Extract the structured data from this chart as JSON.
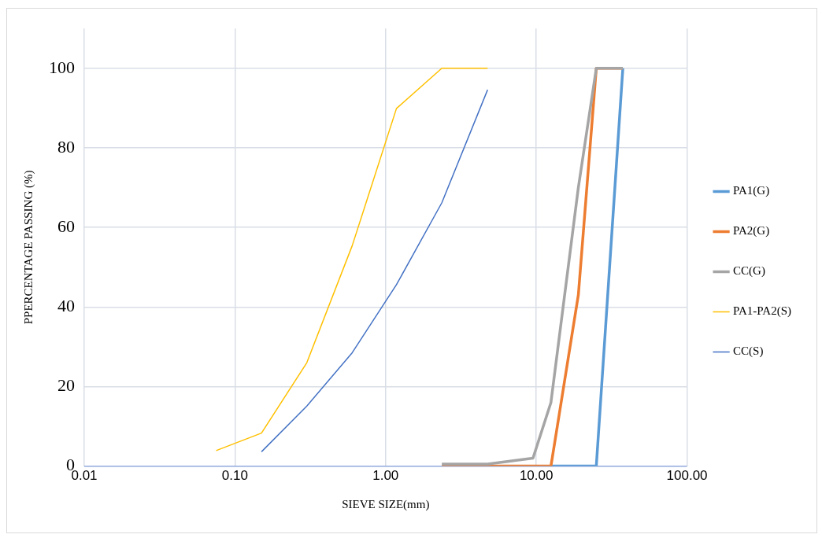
{
  "chart_data": {
    "type": "line",
    "xlabel": "SIEVE SIZE(mm)",
    "ylabel": "PPERCENTAGE PASSING (%)",
    "log": "x",
    "grid": true,
    "legend": "right",
    "marker": "none",
    "line_style": "solid",
    "xlim": [
      0.01,
      100
    ],
    "xticks": [
      {
        "value": 0.01,
        "label": "0.01"
      },
      {
        "value": 0.1,
        "label": "0.10"
      },
      {
        "value": 1,
        "label": "1.00"
      },
      {
        "value": 10,
        "label": "10.00"
      },
      {
        "value": 100,
        "label": "100.00"
      }
    ],
    "ylim": [
      0,
      110
    ],
    "yticks": [
      0,
      20,
      40,
      60,
      80,
      100
    ],
    "series": [
      {
        "name": "PA1(G)",
        "color": "#5b9bd5",
        "x": [
          12.5,
          19,
          25,
          37.5
        ],
        "values": [
          0,
          0,
          0,
          100
        ]
      },
      {
        "name": "PA2(G)",
        "color": "#ed7d31",
        "x": [
          2.36,
          4.75,
          9.5,
          12.5,
          19,
          25,
          37.5
        ],
        "values": [
          0,
          0,
          0,
          0,
          43,
          100,
          100
        ]
      },
      {
        "name": "CC(G)",
        "color": "#a5a5a5",
        "x": [
          2.36,
          4.75,
          9.5,
          12.5,
          19,
          25,
          37.5
        ],
        "values": [
          0.5,
          0.5,
          2,
          16,
          70,
          100,
          100
        ]
      },
      {
        "name": "PA1-PA2(S)",
        "color": "#ffc000",
        "x": [
          0.075,
          0.15,
          0.3,
          0.6,
          1.18,
          2.36,
          4.75
        ],
        "values": [
          3.9,
          8.3,
          26,
          55.4,
          89.9,
          100,
          100
        ]
      },
      {
        "name": "CC(S)",
        "color": "#4472c4",
        "x": [
          0.15,
          0.3,
          0.6,
          1.18,
          2.36,
          4.75
        ],
        "values": [
          3.6,
          15.1,
          28.5,
          45.6,
          66.2,
          94.6
        ]
      }
    ]
  }
}
